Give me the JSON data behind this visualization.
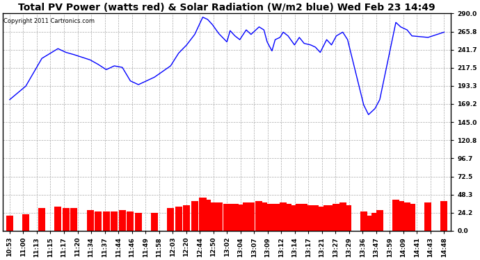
{
  "title": "Total PV Power (watts red) & Solar Radiation (W/m2 blue) Wed Feb 23 14:49",
  "copyright": "Copyright 2011 Cartronics.com",
  "y_ticks": [
    0.0,
    24.2,
    48.3,
    72.5,
    96.7,
    120.8,
    145.0,
    169.2,
    193.3,
    217.5,
    241.7,
    265.8,
    290.0
  ],
  "x_labels": [
    "10:53",
    "11:00",
    "11:13",
    "11:15",
    "11:17",
    "11:20",
    "11:34",
    "11:37",
    "11:44",
    "11:46",
    "11:49",
    "11:58",
    "12:03",
    "12:20",
    "12:44",
    "12:50",
    "13:02",
    "13:04",
    "13:07",
    "13:09",
    "13:12",
    "13:14",
    "13:17",
    "13:21",
    "13:27",
    "13:29",
    "13:36",
    "13:47",
    "13:59",
    "14:09",
    "14:41",
    "14:43",
    "14:48"
  ],
  "solar_radiation": [
    175,
    193,
    230,
    243,
    238,
    235,
    228,
    222,
    215,
    220,
    218,
    200,
    195,
    205,
    220,
    237,
    248,
    262,
    285,
    282,
    275,
    263,
    252,
    267,
    260,
    255,
    268,
    262,
    272,
    268,
    252,
    240,
    255,
    258,
    265,
    260,
    248,
    258,
    250,
    248,
    245,
    238,
    255,
    248,
    260,
    265,
    255,
    168,
    155,
    163,
    175,
    278,
    272,
    268,
    260,
    258,
    265
  ],
  "solar_x": [
    0,
    1,
    2,
    3,
    3.5,
    4,
    5,
    5.5,
    6,
    6.5,
    7,
    7.5,
    8,
    9,
    10,
    10.5,
    11,
    11.5,
    12,
    12.3,
    12.6,
    13,
    13.5,
    13.7,
    14,
    14.3,
    14.7,
    15,
    15.5,
    15.8,
    16,
    16.3,
    16.5,
    16.8,
    17,
    17.3,
    17.7,
    18,
    18.3,
    18.7,
    19,
    19.3,
    19.7,
    20,
    20.3,
    20.7,
    21,
    22,
    22.3,
    22.7,
    23,
    24,
    24.3,
    24.7,
    25,
    26,
    27
  ],
  "pv_power": [
    20,
    22,
    30,
    32,
    30,
    30,
    28,
    26,
    26,
    26,
    28,
    26,
    24,
    24,
    30,
    32,
    34,
    40,
    44,
    42,
    38,
    38,
    36,
    36,
    36,
    35,
    38,
    38,
    40,
    38,
    36,
    36,
    36,
    36,
    38,
    36,
    34,
    36,
    36,
    34,
    34,
    32,
    34,
    34,
    36,
    38,
    34,
    26,
    20,
    24,
    28,
    42,
    40,
    38,
    36,
    38,
    40
  ],
  "bg_color": "#ffffff",
  "plot_bg_color": "#ffffff",
  "line_color_blue": "#0000ff",
  "bar_color_red": "#ff0000",
  "grid_color": "#aaaaaa",
  "title_fontsize": 10,
  "copyright_fontsize": 6,
  "tick_fontsize": 6.5,
  "y_min": 0.0,
  "y_max": 290.0
}
